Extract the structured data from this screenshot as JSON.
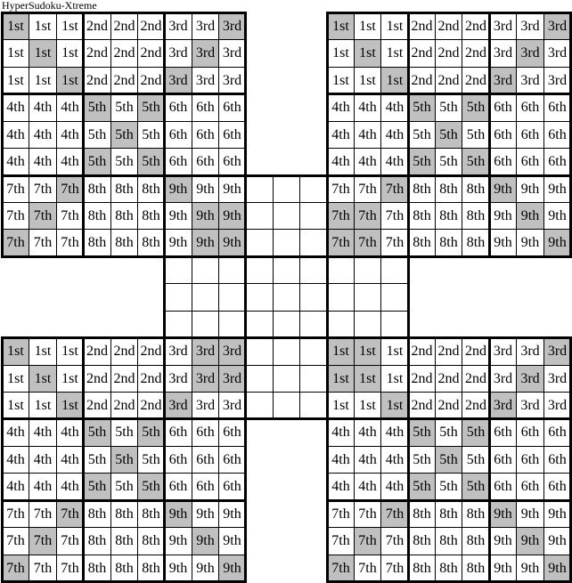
{
  "title": "HyperSudoku-Xtreme",
  "box_labels": [
    "1st",
    "2nd",
    "3rd",
    "4th",
    "5th",
    "6th",
    "7th",
    "8th",
    "9th"
  ],
  "colors": {
    "shaded_cell": "#c0c0c0",
    "grid_line": "#000000",
    "cell_background": "#ffffff",
    "text": "#000000"
  },
  "grids": [
    {
      "id": "top-left",
      "shaded_cells": [
        [
          1,
          1
        ],
        [
          1,
          9
        ],
        [
          2,
          2
        ],
        [
          2,
          8
        ],
        [
          3,
          3
        ],
        [
          3,
          7
        ],
        [
          4,
          4
        ],
        [
          4,
          6
        ],
        [
          5,
          5
        ],
        [
          6,
          4
        ],
        [
          6,
          6
        ],
        [
          7,
          3
        ],
        [
          7,
          7
        ],
        [
          8,
          2
        ],
        [
          8,
          8
        ],
        [
          8,
          9
        ],
        [
          9,
          1
        ],
        [
          9,
          8
        ],
        [
          9,
          9
        ]
      ]
    },
    {
      "id": "top-right",
      "shaded_cells": [
        [
          1,
          1
        ],
        [
          1,
          9
        ],
        [
          2,
          2
        ],
        [
          2,
          8
        ],
        [
          3,
          3
        ],
        [
          3,
          7
        ],
        [
          4,
          4
        ],
        [
          4,
          6
        ],
        [
          5,
          5
        ],
        [
          6,
          4
        ],
        [
          6,
          6
        ],
        [
          7,
          3
        ],
        [
          7,
          7
        ],
        [
          8,
          1
        ],
        [
          8,
          2
        ],
        [
          8,
          8
        ],
        [
          9,
          1
        ],
        [
          9,
          2
        ],
        [
          9,
          9
        ]
      ]
    },
    {
      "id": "bottom-left",
      "shaded_cells": [
        [
          1,
          1
        ],
        [
          1,
          8
        ],
        [
          1,
          9
        ],
        [
          2,
          2
        ],
        [
          2,
          8
        ],
        [
          2,
          9
        ],
        [
          3,
          3
        ],
        [
          3,
          7
        ],
        [
          4,
          4
        ],
        [
          4,
          6
        ],
        [
          5,
          5
        ],
        [
          6,
          4
        ],
        [
          6,
          6
        ],
        [
          7,
          3
        ],
        [
          7,
          7
        ],
        [
          8,
          2
        ],
        [
          8,
          8
        ],
        [
          9,
          1
        ],
        [
          9,
          9
        ]
      ]
    },
    {
      "id": "bottom-right",
      "shaded_cells": [
        [
          1,
          1
        ],
        [
          1,
          2
        ],
        [
          1,
          9
        ],
        [
          2,
          1
        ],
        [
          2,
          2
        ],
        [
          2,
          8
        ],
        [
          3,
          3
        ],
        [
          3,
          7
        ],
        [
          4,
          4
        ],
        [
          4,
          6
        ],
        [
          5,
          5
        ],
        [
          6,
          4
        ],
        [
          6,
          6
        ],
        [
          7,
          3
        ],
        [
          7,
          7
        ],
        [
          8,
          2
        ],
        [
          8,
          8
        ],
        [
          9,
          1
        ],
        [
          9,
          9
        ]
      ]
    },
    {
      "id": "center",
      "shaded_cells": []
    }
  ]
}
